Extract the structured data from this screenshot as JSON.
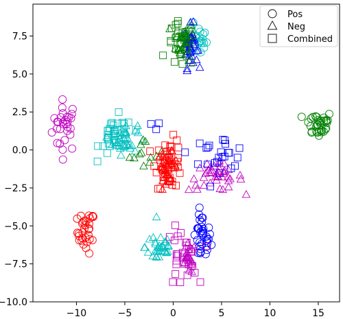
{
  "chart_data": {
    "type": "scatter",
    "title": "",
    "xlabel": "",
    "ylabel": "",
    "xlim": [
      -14.5,
      17.2
    ],
    "ylim": [
      -10.0,
      9.6
    ],
    "x_ticks": [
      -10,
      -5,
      0,
      5,
      10,
      15
    ],
    "x_tick_labels": [
      "−10",
      "−5",
      "0",
      "5",
      "10",
      "15"
    ],
    "y_ticks": [
      -10.0,
      -7.5,
      -5.0,
      -2.5,
      0.0,
      2.5,
      5.0,
      7.5
    ],
    "y_tick_labels": [
      "−10.0",
      "−7.5",
      "−5.0",
      "−2.5",
      "0.0",
      "2.5",
      "5.0",
      "7.5"
    ],
    "grid": false,
    "legend_position": "top-right",
    "marker_legend": [
      {
        "label": "Pos",
        "marker": "circle"
      },
      {
        "label": "Neg",
        "marker": "triangle"
      },
      {
        "label": "Combined",
        "marker": "square"
      }
    ],
    "clusters": [
      {
        "marker": "circle",
        "color": "#bf00bf",
        "center": [
          -11.2,
          1.6
        ],
        "spread": [
          0.65,
          0.85
        ],
        "count": 30
      },
      {
        "marker": "circle",
        "color": "#ff0000",
        "center": [
          -9.0,
          -5.4
        ],
        "spread": [
          0.45,
          0.7
        ],
        "count": 32
      },
      {
        "marker": "circle",
        "color": "#0000ff",
        "center": [
          3.0,
          -5.8
        ],
        "spread": [
          0.45,
          0.8
        ],
        "count": 36
      },
      {
        "marker": "circle",
        "color": "#00bfbf",
        "center": [
          2.6,
          7.2
        ],
        "spread": [
          0.45,
          0.55
        ],
        "count": 24
      },
      {
        "marker": "circle",
        "color": "#008000",
        "center": [
          15.0,
          1.7
        ],
        "spread": [
          0.75,
          0.45
        ],
        "count": 34
      },
      {
        "marker": "triangle",
        "color": "#008000",
        "center": [
          1.2,
          7.2
        ],
        "spread": [
          0.45,
          0.65
        ],
        "count": 26
      },
      {
        "marker": "triangle",
        "color": "#0000ff",
        "center": [
          1.8,
          6.8
        ],
        "spread": [
          0.35,
          0.7
        ],
        "count": 34
      },
      {
        "marker": "triangle",
        "color": "#00bfbf",
        "center": [
          -5.0,
          0.7
        ],
        "spread": [
          0.65,
          0.5
        ],
        "count": 32
      },
      {
        "marker": "triangle",
        "color": "#008000",
        "center": [
          -2.7,
          -0.3
        ],
        "spread": [
          0.9,
          0.55
        ],
        "count": 12
      },
      {
        "marker": "triangle",
        "color": "#ff0000",
        "center": [
          -0.6,
          -1.1
        ],
        "spread": [
          0.5,
          0.45
        ],
        "count": 36
      },
      {
        "marker": "triangle",
        "color": "#bf00bf",
        "center": [
          4.4,
          -1.8
        ],
        "spread": [
          1.4,
          0.45
        ],
        "count": 40
      },
      {
        "marker": "triangle",
        "color": "#00bfbf",
        "center": [
          -1.4,
          -6.4
        ],
        "spread": [
          0.75,
          0.6
        ],
        "count": 34
      },
      {
        "marker": "triangle",
        "color": "#bf00bf",
        "center": [
          1.6,
          -7.2
        ],
        "spread": [
          0.35,
          0.5
        ],
        "count": 20
      },
      {
        "marker": "square",
        "color": "#008000",
        "center": [
          0.8,
          6.9
        ],
        "spread": [
          0.7,
          0.75
        ],
        "count": 34
      },
      {
        "marker": "square",
        "color": "#00bfbf",
        "center": [
          -5.9,
          0.9
        ],
        "spread": [
          0.85,
          0.65
        ],
        "count": 38
      },
      {
        "marker": "square",
        "color": "#ff0000",
        "center": [
          -0.4,
          -0.9
        ],
        "spread": [
          0.7,
          0.8
        ],
        "count": 44
      },
      {
        "marker": "square",
        "color": "#0000ff",
        "center": [
          4.7,
          -0.2
        ],
        "spread": [
          1.5,
          0.55
        ],
        "count": 24
      },
      {
        "marker": "square",
        "color": "#bf00bf",
        "center": [
          0.9,
          -7.1
        ],
        "spread": [
          0.8,
          0.95
        ],
        "count": 30
      },
      {
        "marker": "square",
        "color": "#0000ff",
        "center": [
          -2.0,
          1.7
        ],
        "spread": [
          0.4,
          0.15
        ],
        "count": 3
      }
    ]
  }
}
